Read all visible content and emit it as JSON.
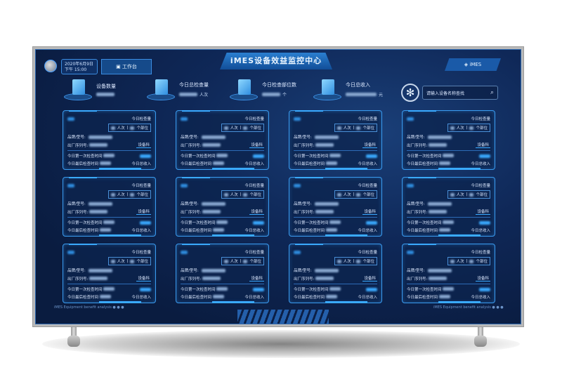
{
  "header": {
    "title": "iMES设备效益监控中心",
    "date": "2020年6月9日",
    "time": "下午 15:00",
    "workbench_label": "工作台",
    "brand_label": "iMES"
  },
  "stats": [
    {
      "label": "设备数量",
      "unit": ""
    },
    {
      "label": "今日总检查量",
      "unit": "人次"
    },
    {
      "label": "今日检查部位数",
      "unit": "个"
    },
    {
      "label": "今日总收入",
      "unit": "元"
    }
  ],
  "search": {
    "placeholder": "请输入设备名称查找"
  },
  "card_labels": {
    "today_exams": "今日检查量",
    "persons": "人次",
    "parts": "个部位",
    "brand_model": "品牌/型号:",
    "serial": "出厂序列号:",
    "dept": "设备科",
    "first_time": "今日第一次检查时间",
    "last_time": "今日最后检查时间",
    "income": "今日总收入"
  },
  "card_count": 12,
  "footer": {
    "text": "iMES  Equipment benefit analysis"
  },
  "colors": {
    "accent": "#3aaaff",
    "background": "#0f2858"
  }
}
